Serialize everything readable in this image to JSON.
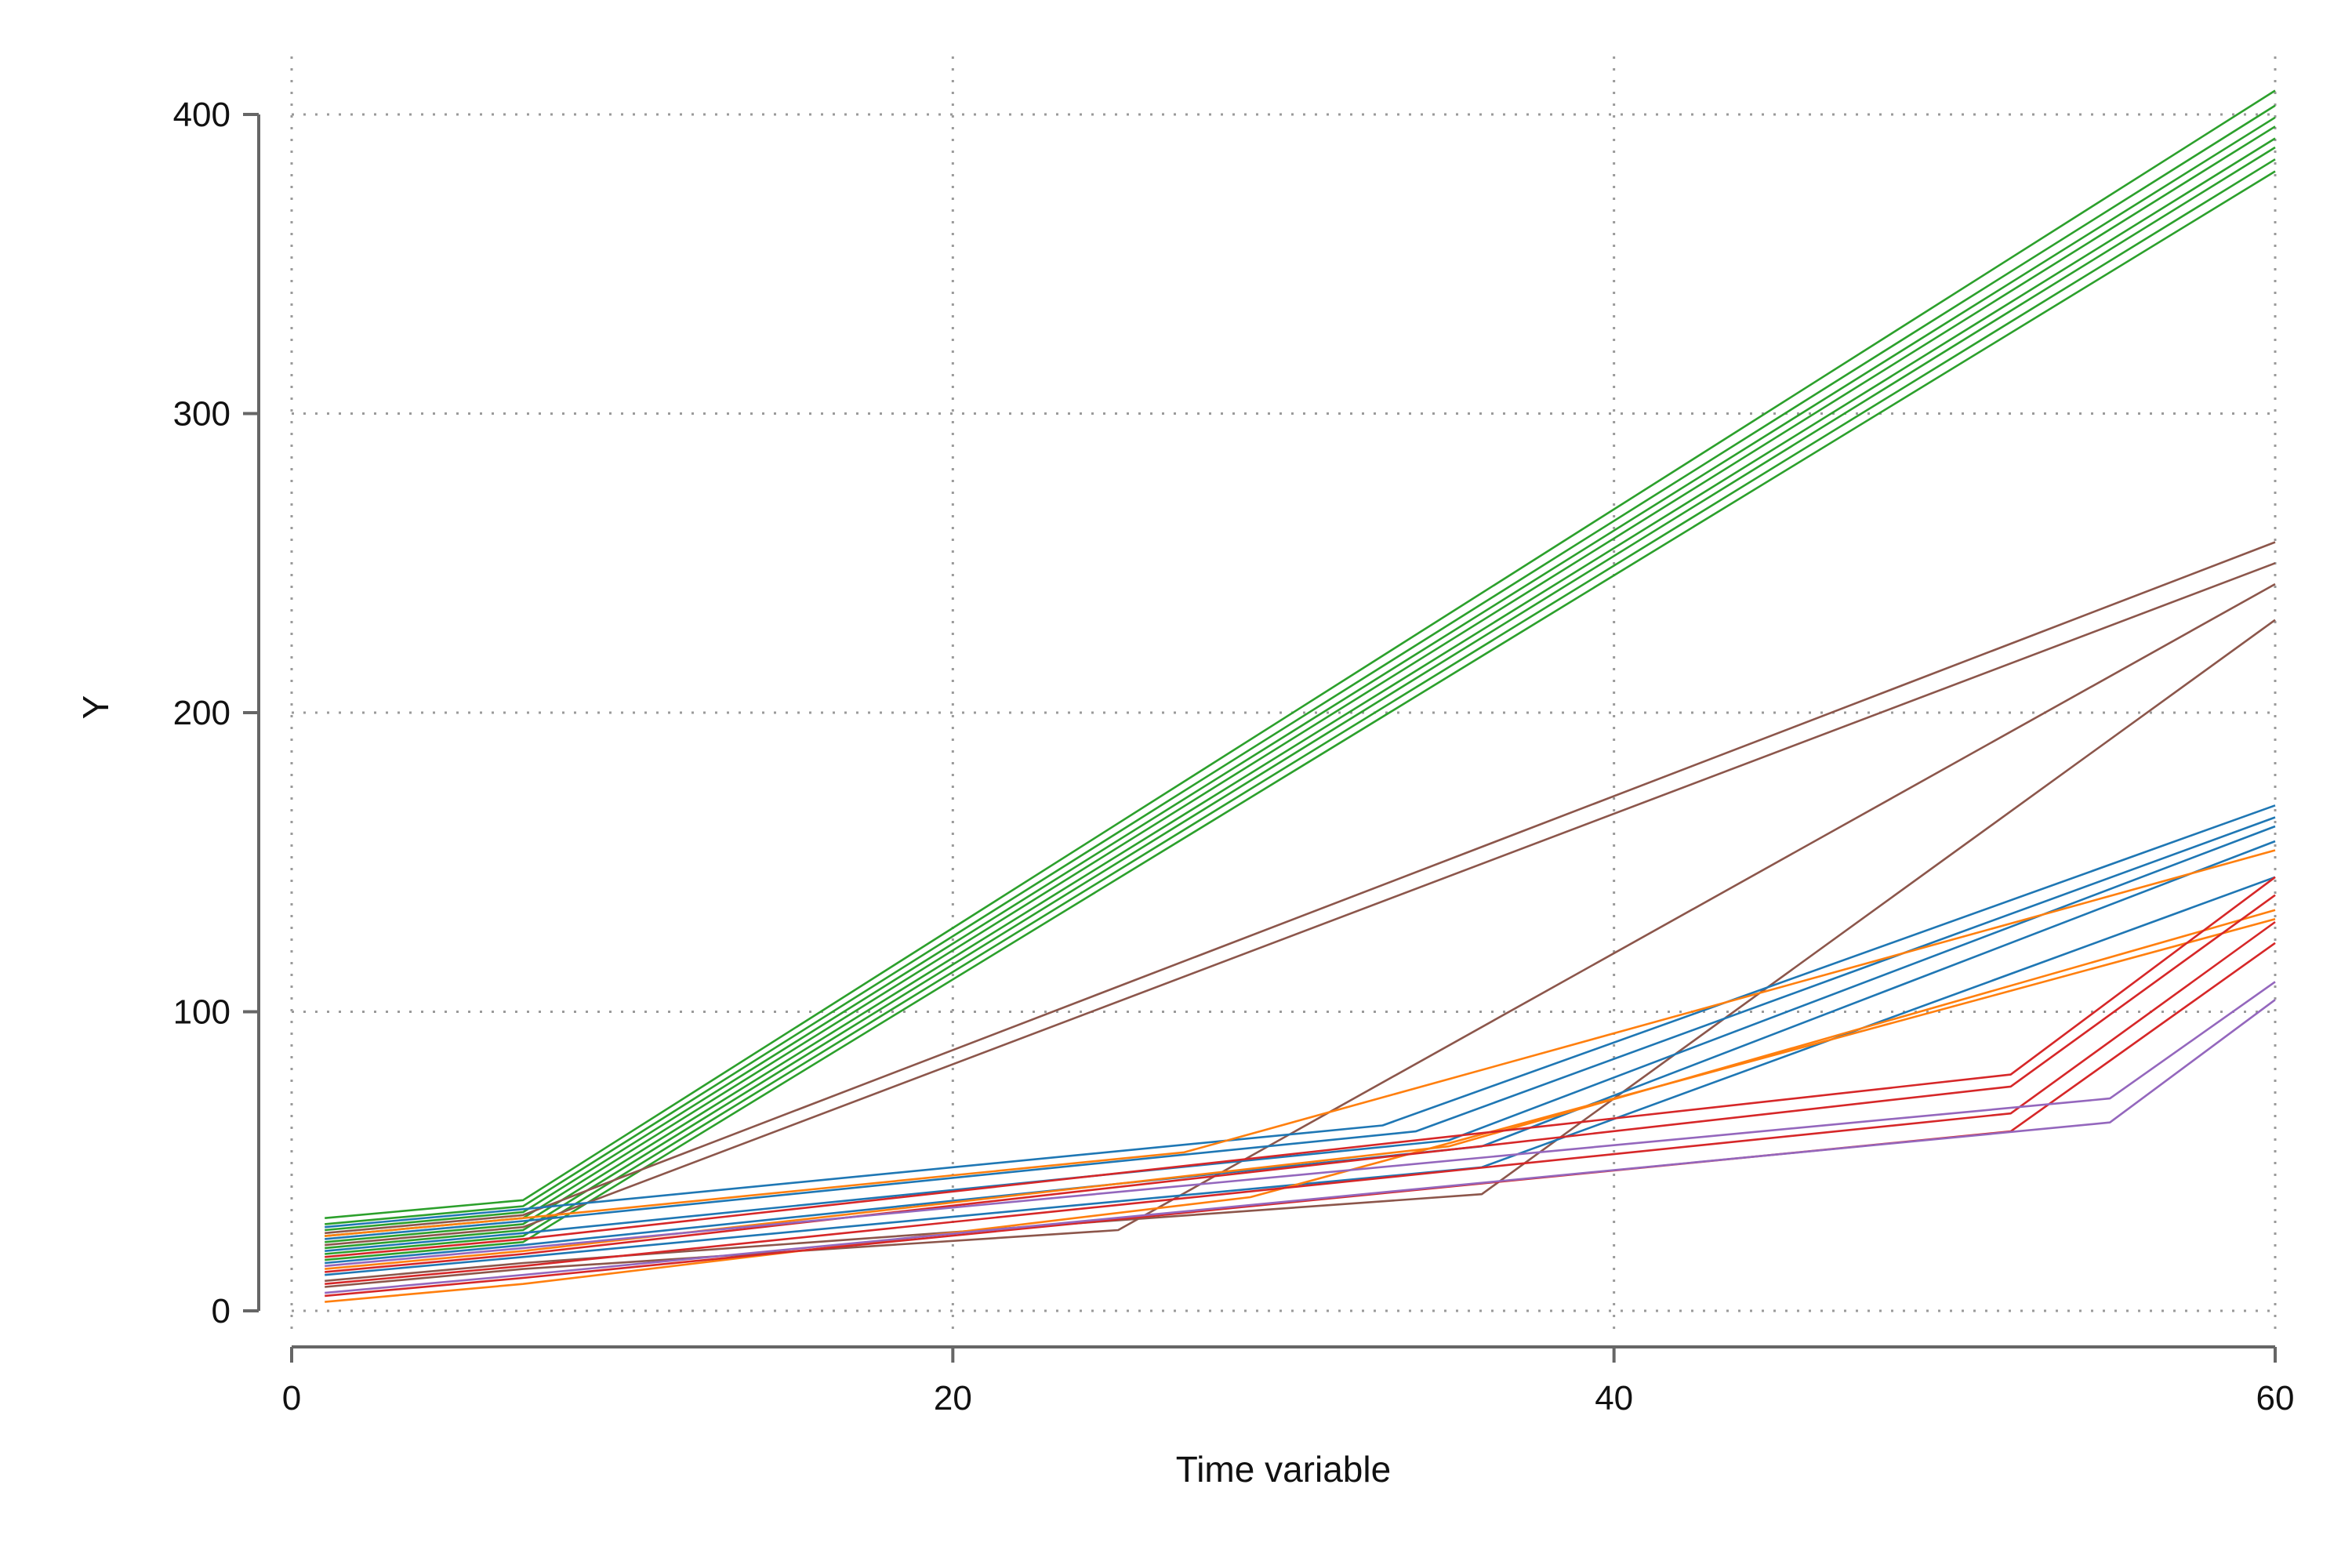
{
  "chart_data": {
    "type": "line",
    "xlabel": "Time variable",
    "ylabel": "Y",
    "xlim": [
      0,
      60
    ],
    "ylim": [
      0,
      400
    ],
    "xticks": [
      0,
      20,
      40,
      60
    ],
    "yticks": [
      0,
      100,
      200,
      300,
      400
    ],
    "grid": true,
    "legend": "none",
    "series": [
      {
        "color": "#2ca02c",
        "points": [
          [
            1,
            31
          ],
          [
            7,
            37
          ],
          [
            60,
            408
          ]
        ]
      },
      {
        "color": "#2ca02c",
        "points": [
          [
            1,
            29
          ],
          [
            7,
            35
          ],
          [
            60,
            403
          ]
        ]
      },
      {
        "color": "#2ca02c",
        "points": [
          [
            1,
            27
          ],
          [
            7,
            33
          ],
          [
            60,
            399
          ]
        ]
      },
      {
        "color": "#2ca02c",
        "points": [
          [
            1,
            25
          ],
          [
            7,
            31
          ],
          [
            60,
            396
          ]
        ]
      },
      {
        "color": "#2ca02c",
        "points": [
          [
            1,
            23
          ],
          [
            7,
            29
          ],
          [
            60,
            392
          ]
        ]
      },
      {
        "color": "#2ca02c",
        "points": [
          [
            1,
            21
          ],
          [
            7,
            27
          ],
          [
            60,
            389
          ]
        ]
      },
      {
        "color": "#2ca02c",
        "points": [
          [
            1,
            19
          ],
          [
            7,
            25
          ],
          [
            60,
            385
          ]
        ]
      },
      {
        "color": "#2ca02c",
        "points": [
          [
            1,
            17
          ],
          [
            7,
            23
          ],
          [
            60,
            381
          ]
        ]
      },
      {
        "color": "#8c564b",
        "points": [
          [
            1,
            26
          ],
          [
            7,
            32
          ],
          [
            60,
            257
          ]
        ]
      },
      {
        "color": "#8c564b",
        "points": [
          [
            1,
            22
          ],
          [
            7,
            28
          ],
          [
            60,
            250
          ]
        ]
      },
      {
        "color": "#8c564b",
        "points": [
          [
            1,
            8
          ],
          [
            7,
            14
          ],
          [
            25,
            27
          ],
          [
            60,
            243
          ]
        ]
      },
      {
        "color": "#8c564b",
        "points": [
          [
            1,
            10
          ],
          [
            7,
            16
          ],
          [
            36,
            39
          ],
          [
            60,
            231
          ]
        ]
      },
      {
        "color": "#1f77b4",
        "points": [
          [
            1,
            28
          ],
          [
            7,
            34
          ],
          [
            33,
            62
          ],
          [
            60,
            169
          ]
        ]
      },
      {
        "color": "#1f77b4",
        "points": [
          [
            1,
            24
          ],
          [
            7,
            30
          ],
          [
            34,
            60
          ],
          [
            60,
            165
          ]
        ]
      },
      {
        "color": "#1f77b4",
        "points": [
          [
            1,
            20
          ],
          [
            7,
            26
          ],
          [
            35,
            57
          ],
          [
            60,
            162
          ]
        ]
      },
      {
        "color": "#1f77b4",
        "points": [
          [
            1,
            16
          ],
          [
            7,
            22
          ],
          [
            36,
            55
          ],
          [
            60,
            157
          ]
        ]
      },
      {
        "color": "#1f77b4",
        "points": [
          [
            1,
            12
          ],
          [
            7,
            18
          ],
          [
            36,
            48
          ],
          [
            60,
            145
          ]
        ]
      },
      {
        "color": "#ff7f0e",
        "points": [
          [
            1,
            25
          ],
          [
            7,
            31
          ],
          [
            27,
            53
          ],
          [
            60,
            154
          ]
        ]
      },
      {
        "color": "#ff7f0e",
        "points": [
          [
            1,
            14
          ],
          [
            7,
            20
          ],
          [
            35,
            55
          ],
          [
            60,
            134
          ]
        ]
      },
      {
        "color": "#ff7f0e",
        "points": [
          [
            1,
            3
          ],
          [
            7,
            9
          ],
          [
            29,
            38
          ],
          [
            60,
            131
          ]
        ]
      },
      {
        "color": "#d62728",
        "points": [
          [
            1,
            18
          ],
          [
            7,
            24
          ],
          [
            52,
            79
          ],
          [
            60,
            145
          ]
        ]
      },
      {
        "color": "#d62728",
        "points": [
          [
            1,
            13
          ],
          [
            7,
            19
          ],
          [
            52,
            75
          ],
          [
            60,
            139
          ]
        ]
      },
      {
        "color": "#d62728",
        "points": [
          [
            1,
            9
          ],
          [
            7,
            15
          ],
          [
            52,
            66
          ],
          [
            60,
            130
          ]
        ]
      },
      {
        "color": "#d62728",
        "points": [
          [
            1,
            5
          ],
          [
            7,
            11
          ],
          [
            52,
            60
          ],
          [
            60,
            123
          ]
        ]
      },
      {
        "color": "#9467bd",
        "points": [
          [
            1,
            15
          ],
          [
            7,
            21
          ],
          [
            55,
            71
          ],
          [
            60,
            110
          ]
        ]
      },
      {
        "color": "#9467bd",
        "points": [
          [
            1,
            6
          ],
          [
            7,
            12
          ],
          [
            55,
            63
          ],
          [
            60,
            104
          ]
        ]
      }
    ]
  }
}
